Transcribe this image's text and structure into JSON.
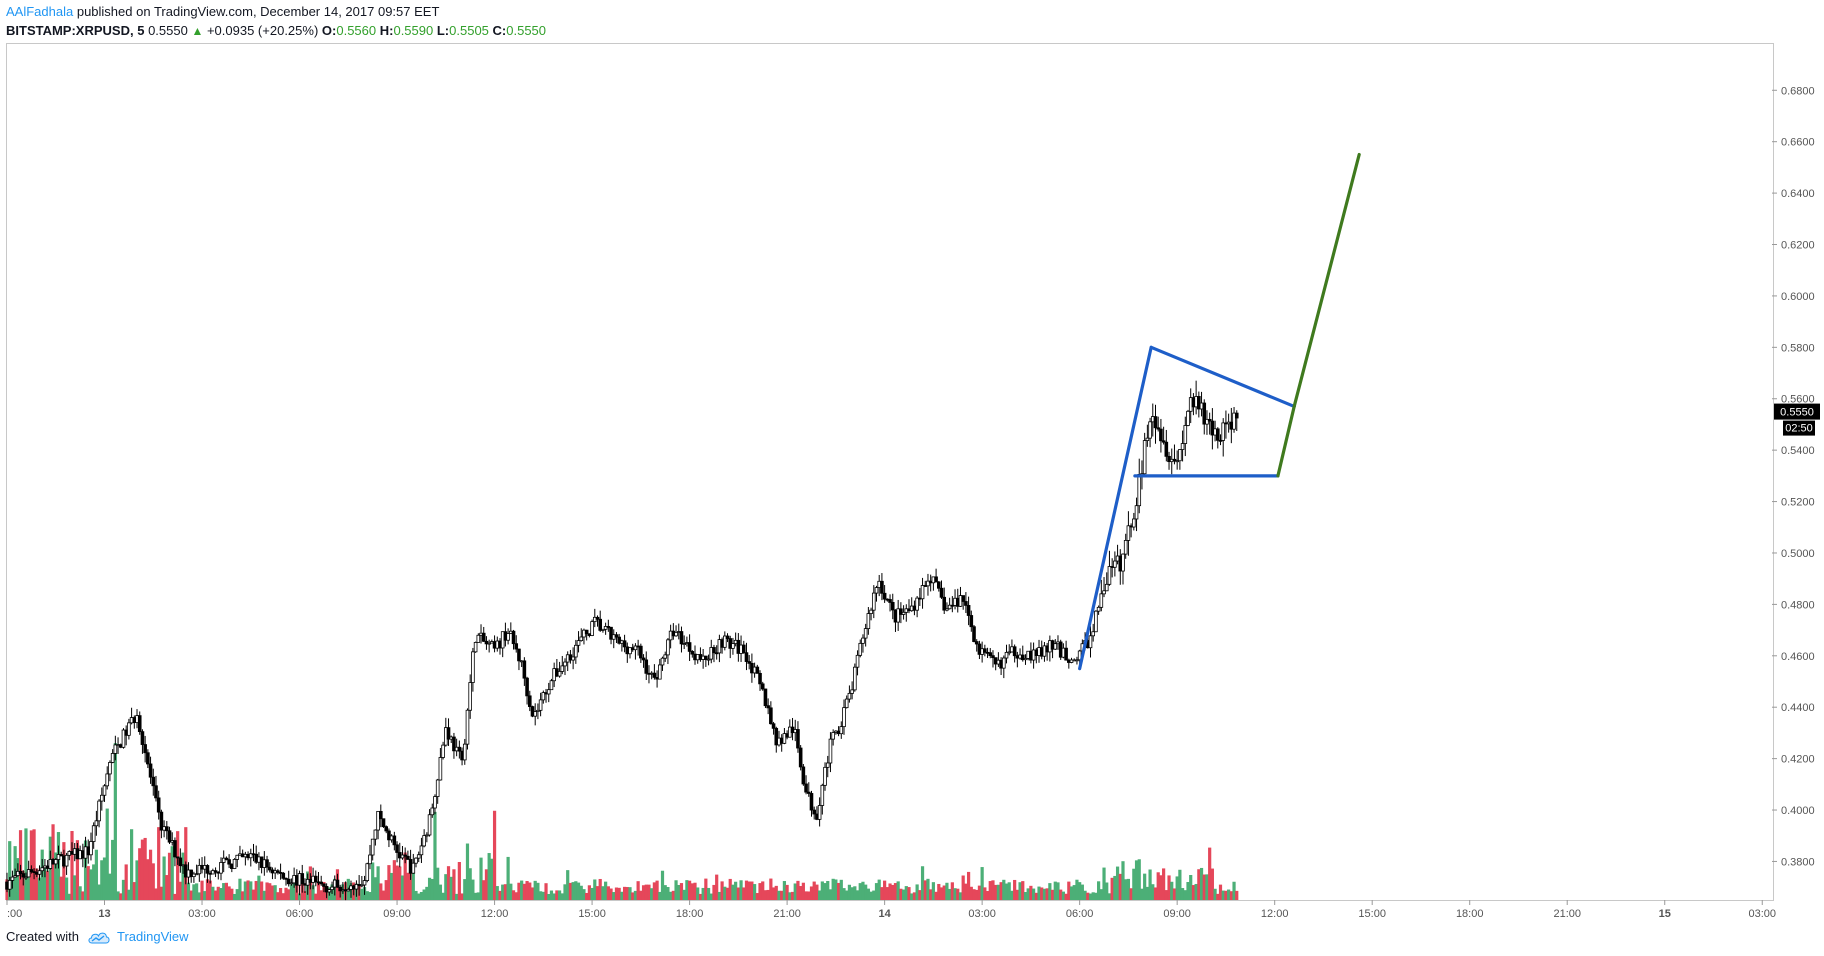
{
  "header": {
    "author": "AAlFadhala",
    "published_text": "published on TradingView.com, December 14, 2017 09:57 EET",
    "symbol": "BITSTAMP:XRPUSD, 5",
    "last": "0.5550",
    "change": "+0.0935 (+20.25%)",
    "o_label": "O:",
    "o_value": "0.5560",
    "h_label": "H:",
    "h_value": "0.5590",
    "l_label": "L:",
    "l_value": "0.5505",
    "c_label": "C:",
    "c_value": "0.5550"
  },
  "footer": {
    "created_with": "Created with",
    "brand": "TradingView"
  },
  "colors": {
    "up_volume": "#4caf77",
    "down_volume": "#e5475a",
    "candle": "#000000",
    "pattern": "#1e5ec8",
    "projection": "#3f7a1e",
    "price_badge": "#000000"
  },
  "chart_data": {
    "type": "candlestick",
    "symbol": "BITSTAMP:XRPUSD",
    "interval": "5",
    "ylim": [
      0.365,
      0.698
    ],
    "y_ticks": [
      "0.3800",
      "0.4000",
      "0.4200",
      "0.4400",
      "0.4600",
      "0.4800",
      "0.5000",
      "0.5200",
      "0.5400",
      "0.5600",
      "0.5800",
      "0.6000",
      "0.6200",
      "0.6400",
      "0.6600",
      "0.6800"
    ],
    "x_range_hours": [
      -24.0,
      30.3
    ],
    "x_ticks": [
      {
        "label": ":00",
        "h": -24
      },
      {
        "label": "13",
        "h": -21
      },
      {
        "label": "03:00",
        "h": -18
      },
      {
        "label": "06:00",
        "h": -15
      },
      {
        "label": "09:00",
        "h": -12
      },
      {
        "label": "12:00",
        "h": -9
      },
      {
        "label": "15:00",
        "h": -6
      },
      {
        "label": "18:00",
        "h": -3
      },
      {
        "label": "21:00",
        "h": 0
      },
      {
        "label": "14",
        "h": 3
      },
      {
        "label": "03:00",
        "h": 6
      },
      {
        "label": "06:00",
        "h": 9
      },
      {
        "label": "09:00",
        "h": 12
      },
      {
        "label": "12:00",
        "h": 15
      },
      {
        "label": "15:00",
        "h": 18
      },
      {
        "label": "18:00",
        "h": 21
      },
      {
        "label": "21:00",
        "h": 24
      },
      {
        "label": "15",
        "h": 27
      },
      {
        "label": "03:00",
        "h": 30
      }
    ],
    "price_path": [
      {
        "h": -24.0,
        "p": 0.372
      },
      {
        "h": -22.5,
        "p": 0.38
      },
      {
        "h": -21.5,
        "p": 0.384
      },
      {
        "h": -20.8,
        "p": 0.42
      },
      {
        "h": -20.0,
        "p": 0.438
      },
      {
        "h": -19.3,
        "p": 0.395
      },
      {
        "h": -18.5,
        "p": 0.376
      },
      {
        "h": -17.5,
        "p": 0.378
      },
      {
        "h": -16.5,
        "p": 0.382
      },
      {
        "h": -15.5,
        "p": 0.374
      },
      {
        "h": -14.0,
        "p": 0.37
      },
      {
        "h": -13.0,
        "p": 0.373
      },
      {
        "h": -12.6,
        "p": 0.398
      },
      {
        "h": -12.0,
        "p": 0.384
      },
      {
        "h": -11.5,
        "p": 0.377
      },
      {
        "h": -11.0,
        "p": 0.396
      },
      {
        "h": -10.5,
        "p": 0.432
      },
      {
        "h": -10.0,
        "p": 0.418
      },
      {
        "h": -9.6,
        "p": 0.468
      },
      {
        "h": -9.0,
        "p": 0.462
      },
      {
        "h": -8.6,
        "p": 0.47
      },
      {
        "h": -8.2,
        "p": 0.458
      },
      {
        "h": -7.8,
        "p": 0.436
      },
      {
        "h": -7.3,
        "p": 0.45
      },
      {
        "h": -6.6,
        "p": 0.462
      },
      {
        "h": -5.9,
        "p": 0.473
      },
      {
        "h": -5.2,
        "p": 0.465
      },
      {
        "h": -4.6,
        "p": 0.462
      },
      {
        "h": -4.1,
        "p": 0.45
      },
      {
        "h": -3.5,
        "p": 0.47
      },
      {
        "h": -2.6,
        "p": 0.458
      },
      {
        "h": -2.0,
        "p": 0.466
      },
      {
        "h": -1.3,
        "p": 0.462
      },
      {
        "h": -0.7,
        "p": 0.444
      },
      {
        "h": -0.3,
        "p": 0.426
      },
      {
        "h": 0.2,
        "p": 0.432
      },
      {
        "h": 0.6,
        "p": 0.406
      },
      {
        "h": 0.9,
        "p": 0.398
      },
      {
        "h": 1.3,
        "p": 0.424
      },
      {
        "h": 1.7,
        "p": 0.436
      },
      {
        "h": 2.0,
        "p": 0.448
      },
      {
        "h": 2.3,
        "p": 0.466
      },
      {
        "h": 2.8,
        "p": 0.49
      },
      {
        "h": 3.3,
        "p": 0.475
      },
      {
        "h": 3.8,
        "p": 0.478
      },
      {
        "h": 4.4,
        "p": 0.491
      },
      {
        "h": 4.9,
        "p": 0.478
      },
      {
        "h": 5.4,
        "p": 0.483
      },
      {
        "h": 5.9,
        "p": 0.462
      },
      {
        "h": 6.4,
        "p": 0.456
      },
      {
        "h": 7.0,
        "p": 0.462
      },
      {
        "h": 7.6,
        "p": 0.46
      },
      {
        "h": 8.2,
        "p": 0.464
      },
      {
        "h": 8.8,
        "p": 0.458
      },
      {
        "h": 9.3,
        "p": 0.466
      },
      {
        "h": 9.8,
        "p": 0.49
      },
      {
        "h": 10.3,
        "p": 0.497
      },
      {
        "h": 10.8,
        "p": 0.524
      },
      {
        "h": 11.2,
        "p": 0.558
      },
      {
        "h": 11.6,
        "p": 0.543
      },
      {
        "h": 12.0,
        "p": 0.535
      },
      {
        "h": 12.4,
        "p": 0.56
      },
      {
        "h": 12.8,
        "p": 0.553
      },
      {
        "h": 13.2,
        "p": 0.546
      },
      {
        "h": 13.6,
        "p": 0.55
      },
      {
        "h": 13.9,
        "p": 0.555
      }
    ],
    "pattern_lines": [
      {
        "name": "flag-pole",
        "h1": 9.0,
        "p1": 0.455,
        "h2": 11.2,
        "p2": 0.58
      },
      {
        "name": "flag-upper",
        "h1": 11.2,
        "p1": 0.58,
        "h2": 15.6,
        "p2": 0.557
      },
      {
        "name": "flag-lower",
        "h1": 10.7,
        "p1": 0.53,
        "h2": 15.1,
        "p2": 0.53
      }
    ],
    "projection_lines": [
      {
        "name": "breakout-leg",
        "h1": 15.1,
        "p1": 0.53,
        "h2": 15.6,
        "p2": 0.557
      },
      {
        "name": "target-leg",
        "h1": 15.6,
        "p1": 0.557,
        "h2": 17.6,
        "p2": 0.655
      }
    ],
    "last_price_badge": "0.5550",
    "countdown_badge": "02:50",
    "seed": 7
  }
}
